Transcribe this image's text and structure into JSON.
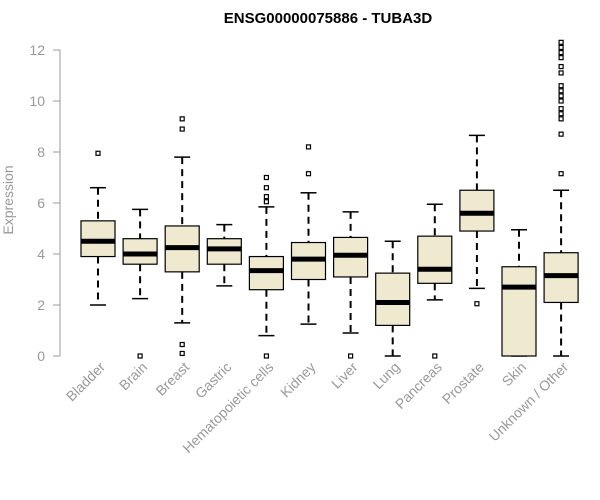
{
  "chart_data": {
    "type": "boxplot",
    "title": "ENSG00000075886 - TUBA3D",
    "xlabel": "",
    "ylabel": "Expression",
    "ylim": [
      0,
      12
    ],
    "yticks": [
      0,
      2,
      4,
      6,
      8,
      10,
      12
    ],
    "box_fill": "#efe9d0",
    "categories": [
      "Bladder",
      "Brain",
      "Breast",
      "Gastric",
      "Hematopoietic cells",
      "Kidney",
      "Liver",
      "Lung",
      "Pancreas",
      "Prostate",
      "Skin",
      "Unknown / Other"
    ],
    "boxes": [
      {
        "min": 2.0,
        "q1": 3.9,
        "median": 4.5,
        "q3": 5.3,
        "max": 6.6,
        "outliers": [
          7.95
        ]
      },
      {
        "min": 2.25,
        "q1": 3.6,
        "median": 4.0,
        "q3": 4.6,
        "max": 5.75,
        "outliers": [
          0.0
        ]
      },
      {
        "min": 1.3,
        "q1": 3.3,
        "median": 4.25,
        "q3": 5.1,
        "max": 7.8,
        "outliers": [
          0.1,
          0.45,
          8.9,
          9.3
        ]
      },
      {
        "min": 2.75,
        "q1": 3.6,
        "median": 4.2,
        "q3": 4.6,
        "max": 5.15,
        "outliers": []
      },
      {
        "min": 0.8,
        "q1": 2.6,
        "median": 3.35,
        "q3": 3.9,
        "max": 5.85,
        "outliers": [
          0.0,
          6.05,
          6.25,
          6.6,
          7.0
        ]
      },
      {
        "min": 1.25,
        "q1": 3.0,
        "median": 3.8,
        "q3": 4.45,
        "max": 6.4,
        "outliers": [
          7.15,
          8.2
        ]
      },
      {
        "min": 0.9,
        "q1": 3.1,
        "median": 3.95,
        "q3": 4.65,
        "max": 5.65,
        "outliers": [
          0.0
        ]
      },
      {
        "min": 0.0,
        "q1": 1.2,
        "median": 2.1,
        "q3": 3.25,
        "max": 4.5,
        "outliers": []
      },
      {
        "min": 2.2,
        "q1": 2.85,
        "median": 3.4,
        "q3": 4.7,
        "max": 5.95,
        "outliers": [
          0.0
        ]
      },
      {
        "min": 2.65,
        "q1": 4.9,
        "median": 5.6,
        "q3": 6.5,
        "max": 8.65,
        "outliers": [
          2.05
        ]
      },
      {
        "min": 0.0,
        "q1": 0.0,
        "median": 2.7,
        "q3": 3.5,
        "max": 4.95,
        "outliers": []
      },
      {
        "min": 0.0,
        "q1": 2.1,
        "median": 3.15,
        "q3": 4.05,
        "max": 6.5,
        "outliers": [
          7.15,
          8.7,
          9.3,
          9.5,
          9.7,
          10.0,
          10.2,
          10.4,
          10.6,
          11.1,
          11.35,
          11.7,
          11.9,
          12.1,
          12.3
        ]
      }
    ]
  }
}
